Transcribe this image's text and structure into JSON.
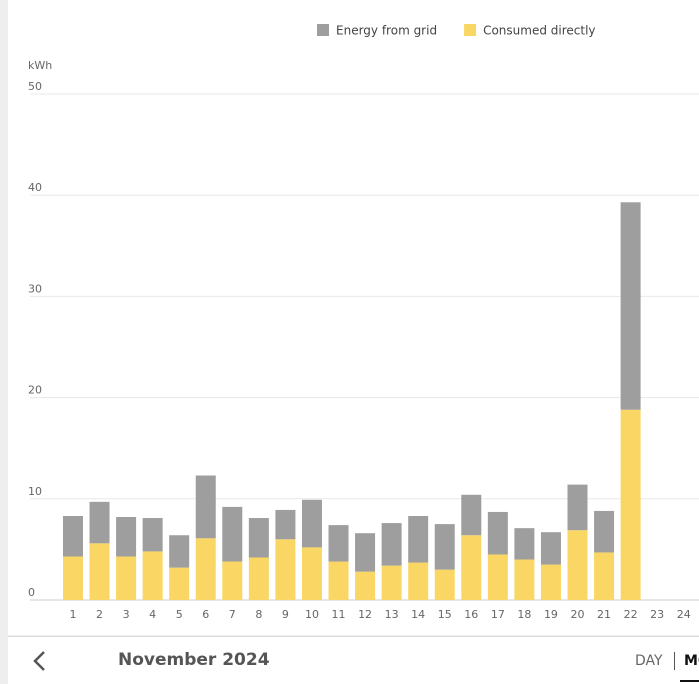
{
  "chart_data": {
    "type": "bar",
    "stacked": true,
    "y_label": "kWh",
    "categories": [
      "1",
      "2",
      "3",
      "4",
      "5",
      "6",
      "7",
      "8",
      "9",
      "10",
      "11",
      "12",
      "13",
      "14",
      "15",
      "16",
      "17",
      "18",
      "19",
      "20",
      "21",
      "22",
      "23",
      "24"
    ],
    "series": [
      {
        "name": "Energy from grid",
        "color": "#9e9e9e",
        "values": [
          4.0,
          4.1,
          3.9,
          3.3,
          3.2,
          6.2,
          5.4,
          3.9,
          2.9,
          4.7,
          3.6,
          3.8,
          4.2,
          4.6,
          4.5,
          4.0,
          4.2,
          3.1,
          3.2,
          4.5,
          4.1,
          20.5,
          null,
          null
        ]
      },
      {
        "name": "Consumed directly",
        "color": "#fad764",
        "values": [
          4.3,
          5.6,
          4.3,
          4.8,
          3.2,
          6.1,
          3.8,
          4.2,
          6.0,
          5.2,
          3.8,
          2.8,
          3.4,
          3.7,
          3.0,
          6.4,
          4.5,
          4.0,
          3.5,
          6.9,
          4.7,
          18.8,
          null,
          null
        ]
      }
    ],
    "ylim": [
      0,
      50
    ],
    "yticks": [
      0,
      10,
      20,
      30,
      40,
      50
    ],
    "grid": true
  },
  "footer": {
    "period": "November 2024",
    "tabs": [
      "DAY",
      "MONTH"
    ]
  }
}
